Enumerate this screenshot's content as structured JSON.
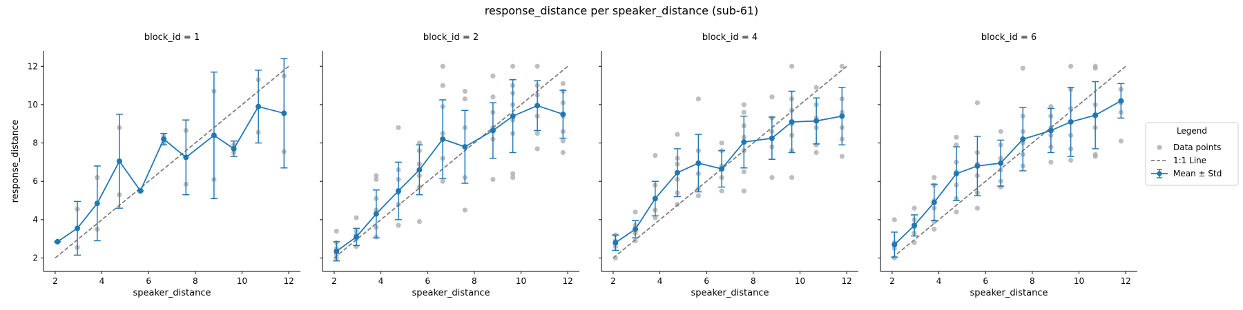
{
  "figure": {
    "title": "response_distance per speaker_distance (sub-61)"
  },
  "legend": {
    "title": "Legend",
    "placement": "right-center",
    "items": [
      {
        "label": "Data points",
        "kind": "scatter",
        "color": "#9e9e9e"
      },
      {
        "label": "1:1 Line",
        "kind": "dashed-line",
        "color": "#7f7f7f"
      },
      {
        "label": "Mean ± Std",
        "kind": "errorbar-line",
        "color": "#1f77b4"
      }
    ]
  },
  "chart_data": [
    {
      "type": "line",
      "title": "block_id = 1",
      "xlabel": "speaker_distance",
      "ylabel": "response_distance",
      "xlim": [
        1.5,
        12.5
      ],
      "ylim": [
        1.3,
        12.8
      ],
      "xticks": [
        2,
        4,
        6,
        8,
        10,
        12
      ],
      "yticks": [
        2,
        4,
        6,
        8,
        10,
        12
      ],
      "grid": false,
      "identity_line": {
        "x": [
          2,
          12
        ],
        "y": [
          2,
          12
        ]
      },
      "series": [
        {
          "x": [
            2.1,
            2.95,
            3.8,
            4.75,
            5.65,
            6.65,
            7.6,
            8.8,
            9.65,
            10.7,
            11.8
          ],
          "mean": [
            2.85,
            3.55,
            4.85,
            7.05,
            5.5,
            8.2,
            7.25,
            8.4,
            7.7,
            9.9,
            9.55
          ],
          "std": [
            0.0,
            1.4,
            1.95,
            2.45,
            0.0,
            0.3,
            1.95,
            3.3,
            0.4,
            1.9,
            2.85
          ]
        }
      ],
      "points": [
        [
          2.1,
          2.85
        ],
        [
          2.95,
          4.55
        ],
        [
          2.95,
          2.55
        ],
        [
          3.8,
          6.2
        ],
        [
          3.8,
          3.5
        ],
        [
          4.75,
          8.8
        ],
        [
          4.75,
          5.3
        ],
        [
          5.65,
          5.55
        ],
        [
          6.65,
          8.0
        ],
        [
          6.65,
          8.35
        ],
        [
          7.6,
          8.65
        ],
        [
          7.6,
          5.85
        ],
        [
          8.8,
          10.7
        ],
        [
          8.8,
          6.1
        ],
        [
          9.65,
          7.5
        ],
        [
          9.65,
          7.9
        ],
        [
          10.7,
          11.3
        ],
        [
          10.7,
          8.55
        ],
        [
          11.8,
          11.5
        ],
        [
          11.8,
          7.55
        ]
      ]
    },
    {
      "type": "line",
      "title": "block_id = 2",
      "xlabel": "speaker_distance",
      "ylabel": "",
      "xlim": [
        1.5,
        12.5
      ],
      "ylim": [
        1.3,
        12.8
      ],
      "xticks": [
        2,
        4,
        6,
        8,
        10,
        12
      ],
      "yticks": [
        2,
        4,
        6,
        8,
        10,
        12
      ],
      "grid": false,
      "identity_line": {
        "x": [
          2,
          12
        ],
        "y": [
          2,
          12
        ]
      },
      "series": [
        {
          "x": [
            2.1,
            2.95,
            3.8,
            4.75,
            5.65,
            6.65,
            7.6,
            8.8,
            9.65,
            10.7,
            11.8
          ],
          "mean": [
            2.35,
            3.1,
            4.3,
            5.5,
            6.6,
            8.2,
            7.8,
            8.65,
            9.4,
            9.95,
            9.5
          ],
          "std": [
            0.5,
            0.45,
            1.25,
            1.5,
            1.3,
            2.05,
            1.9,
            1.45,
            1.9,
            1.3,
            1.25
          ]
        }
      ],
      "points": [
        [
          2.1,
          3.4
        ],
        [
          2.1,
          2.8
        ],
        [
          2.1,
          2.5
        ],
        [
          2.1,
          2.0
        ],
        [
          2.1,
          2.2
        ],
        [
          2.95,
          4.1
        ],
        [
          2.95,
          3.4
        ],
        [
          2.95,
          3.0
        ],
        [
          2.95,
          2.6
        ],
        [
          2.95,
          3.2
        ],
        [
          3.8,
          6.3
        ],
        [
          3.8,
          6.1
        ],
        [
          3.8,
          5.1
        ],
        [
          3.8,
          4.5
        ],
        [
          3.8,
          3.6
        ],
        [
          3.8,
          3.1
        ],
        [
          4.75,
          8.8
        ],
        [
          4.75,
          6.6
        ],
        [
          4.75,
          6.1
        ],
        [
          4.75,
          5.4
        ],
        [
          4.75,
          4.8
        ],
        [
          4.75,
          3.7
        ],
        [
          5.65,
          8.0
        ],
        [
          5.65,
          7.6
        ],
        [
          5.65,
          6.9
        ],
        [
          5.65,
          6.3
        ],
        [
          5.65,
          5.7
        ],
        [
          5.65,
          3.9
        ],
        [
          6.65,
          12.0
        ],
        [
          6.65,
          11.0
        ],
        [
          6.65,
          9.9
        ],
        [
          6.65,
          8.5
        ],
        [
          6.65,
          7.2
        ],
        [
          6.65,
          6.0
        ],
        [
          7.6,
          10.7
        ],
        [
          7.6,
          10.3
        ],
        [
          7.6,
          8.8
        ],
        [
          7.6,
          7.8
        ],
        [
          7.6,
          6.2
        ],
        [
          7.6,
          4.5
        ],
        [
          8.8,
          11.5
        ],
        [
          8.8,
          10.4
        ],
        [
          8.8,
          9.6
        ],
        [
          8.8,
          8.8
        ],
        [
          8.8,
          8.2
        ],
        [
          8.8,
          6.1
        ],
        [
          9.65,
          12.0
        ],
        [
          9.65,
          11.0
        ],
        [
          9.65,
          10.6
        ],
        [
          9.65,
          10.0
        ],
        [
          9.65,
          9.2
        ],
        [
          9.65,
          8.5
        ],
        [
          9.65,
          6.4
        ],
        [
          9.65,
          6.2
        ],
        [
          10.7,
          12.0
        ],
        [
          10.7,
          11.0
        ],
        [
          10.7,
          10.5
        ],
        [
          10.7,
          9.4
        ],
        [
          10.7,
          8.5
        ],
        [
          10.7,
          7.7
        ],
        [
          11.8,
          11.1
        ],
        [
          11.8,
          10.7
        ],
        [
          11.8,
          10.1
        ],
        [
          11.8,
          9.4
        ],
        [
          11.8,
          8.6
        ],
        [
          11.8,
          8.1
        ],
        [
          11.8,
          7.5
        ]
      ]
    },
    {
      "type": "line",
      "title": "block_id = 4",
      "xlabel": "speaker_distance",
      "ylabel": "",
      "xlim": [
        1.5,
        12.5
      ],
      "ylim": [
        1.3,
        12.8
      ],
      "xticks": [
        2,
        4,
        6,
        8,
        10,
        12
      ],
      "yticks": [
        2,
        4,
        6,
        8,
        10,
        12
      ],
      "grid": false,
      "identity_line": {
        "x": [
          2,
          12
        ],
        "y": [
          2,
          12
        ]
      },
      "series": [
        {
          "x": [
            2.1,
            2.95,
            3.8,
            4.75,
            5.65,
            6.65,
            7.6,
            8.8,
            9.65,
            10.7,
            11.8
          ],
          "mean": [
            2.8,
            3.5,
            5.1,
            6.45,
            6.95,
            6.65,
            8.05,
            8.25,
            9.1,
            9.15,
            9.4
          ],
          "std": [
            0.4,
            0.45,
            0.9,
            1.25,
            1.5,
            0.95,
            1.35,
            1.1,
            1.6,
            1.2,
            1.5
          ]
        }
      ],
      "points": [
        [
          2.1,
          3.2
        ],
        [
          2.1,
          2.9
        ],
        [
          2.1,
          2.6
        ],
        [
          2.1,
          2.0
        ],
        [
          2.95,
          4.4
        ],
        [
          2.95,
          3.7
        ],
        [
          2.95,
          3.3
        ],
        [
          2.95,
          2.9
        ],
        [
          3.8,
          7.35
        ],
        [
          3.8,
          5.8
        ],
        [
          3.8,
          5.1
        ],
        [
          3.8,
          4.5
        ],
        [
          3.8,
          4.1
        ],
        [
          4.75,
          8.45
        ],
        [
          4.75,
          7.2
        ],
        [
          4.75,
          6.9
        ],
        [
          4.75,
          6.1
        ],
        [
          4.75,
          5.4
        ],
        [
          4.75,
          4.8
        ],
        [
          5.65,
          10.3
        ],
        [
          5.65,
          7.6
        ],
        [
          5.65,
          6.9
        ],
        [
          5.65,
          6.4
        ],
        [
          5.65,
          5.6
        ],
        [
          5.65,
          5.25
        ],
        [
          6.65,
          8.0
        ],
        [
          6.65,
          7.6
        ],
        [
          6.65,
          6.8
        ],
        [
          6.65,
          6.2
        ],
        [
          6.65,
          5.5
        ],
        [
          7.6,
          10.0
        ],
        [
          7.6,
          9.6
        ],
        [
          7.6,
          8.9
        ],
        [
          7.6,
          8.3
        ],
        [
          7.6,
          7.6
        ],
        [
          7.6,
          6.5
        ],
        [
          7.6,
          5.5
        ],
        [
          8.8,
          10.4
        ],
        [
          8.8,
          9.3
        ],
        [
          8.8,
          8.6
        ],
        [
          8.8,
          8.2
        ],
        [
          8.8,
          7.8
        ],
        [
          8.8,
          6.2
        ],
        [
          9.65,
          12.0
        ],
        [
          9.65,
          10.3
        ],
        [
          9.65,
          9.7
        ],
        [
          9.65,
          9.0
        ],
        [
          9.65,
          8.4
        ],
        [
          9.65,
          7.6
        ],
        [
          9.65,
          6.2
        ],
        [
          10.7,
          10.9
        ],
        [
          10.7,
          10.0
        ],
        [
          10.7,
          9.3
        ],
        [
          10.7,
          8.8
        ],
        [
          10.7,
          7.9
        ],
        [
          10.7,
          7.5
        ],
        [
          11.8,
          12.0
        ],
        [
          11.8,
          10.3
        ],
        [
          11.8,
          9.6
        ],
        [
          11.8,
          8.8
        ],
        [
          11.8,
          8.2
        ],
        [
          11.8,
          7.3
        ]
      ]
    },
    {
      "type": "line",
      "title": "block_id = 6",
      "xlabel": "speaker_distance",
      "ylabel": "",
      "xlim": [
        1.5,
        12.5
      ],
      "ylim": [
        1.3,
        12.8
      ],
      "xticks": [
        2,
        4,
        6,
        8,
        10,
        12
      ],
      "yticks": [
        2,
        4,
        6,
        8,
        10,
        12
      ],
      "grid": false,
      "identity_line": {
        "x": [
          2,
          12
        ],
        "y": [
          2,
          12
        ]
      },
      "series": [
        {
          "x": [
            2.1,
            2.95,
            3.8,
            4.75,
            5.65,
            6.65,
            7.6,
            8.8,
            9.65,
            10.7,
            11.8
          ],
          "mean": [
            2.7,
            3.7,
            4.9,
            6.4,
            6.8,
            6.95,
            8.2,
            8.65,
            9.1,
            9.45,
            10.2
          ],
          "std": [
            0.65,
            0.55,
            0.95,
            1.4,
            1.55,
            1.2,
            1.65,
            1.15,
            1.8,
            1.75,
            0.9
          ]
        }
      ],
      "points": [
        [
          2.1,
          4.0
        ],
        [
          2.1,
          2.8
        ],
        [
          2.1,
          2.5
        ],
        [
          2.1,
          2.0
        ],
        [
          2.95,
          4.6
        ],
        [
          2.95,
          4.0
        ],
        [
          2.95,
          3.6
        ],
        [
          2.95,
          3.3
        ],
        [
          2.95,
          2.8
        ],
        [
          3.8,
          6.2
        ],
        [
          3.8,
          5.8
        ],
        [
          3.8,
          5.0
        ],
        [
          3.8,
          4.6
        ],
        [
          3.8,
          3.9
        ],
        [
          3.8,
          3.5
        ],
        [
          4.75,
          8.3
        ],
        [
          4.75,
          7.9
        ],
        [
          4.75,
          7.0
        ],
        [
          4.75,
          6.5
        ],
        [
          4.75,
          5.8
        ],
        [
          4.75,
          5.1
        ],
        [
          4.75,
          4.4
        ],
        [
          5.65,
          10.1
        ],
        [
          5.65,
          7.5
        ],
        [
          5.65,
          6.9
        ],
        [
          5.65,
          6.3
        ],
        [
          5.65,
          5.4
        ],
        [
          5.65,
          4.6
        ],
        [
          6.65,
          8.6
        ],
        [
          6.65,
          7.9
        ],
        [
          6.65,
          7.2
        ],
        [
          6.65,
          6.6
        ],
        [
          6.65,
          6.0
        ],
        [
          6.65,
          5.7
        ],
        [
          7.6,
          11.9
        ],
        [
          7.6,
          9.4
        ],
        [
          7.6,
          8.6
        ],
        [
          7.6,
          8.0
        ],
        [
          7.6,
          7.4
        ],
        [
          7.6,
          6.8
        ],
        [
          8.8,
          9.9
        ],
        [
          8.8,
          9.4
        ],
        [
          8.8,
          8.8
        ],
        [
          8.8,
          8.4
        ],
        [
          8.8,
          7.8
        ],
        [
          8.8,
          7.0
        ],
        [
          9.65,
          12.0
        ],
        [
          9.65,
          10.8
        ],
        [
          9.65,
          9.8
        ],
        [
          9.65,
          9.1
        ],
        [
          9.65,
          8.4
        ],
        [
          9.65,
          7.7
        ],
        [
          9.65,
          7.1
        ],
        [
          10.7,
          12.0
        ],
        [
          10.7,
          11.9
        ],
        [
          10.7,
          10.0
        ],
        [
          10.7,
          9.4
        ],
        [
          10.7,
          8.8
        ],
        [
          10.7,
          7.4
        ],
        [
          10.7,
          7.3
        ],
        [
          11.8,
          10.8
        ],
        [
          11.8,
          10.1
        ],
        [
          11.8,
          9.6
        ],
        [
          11.8,
          8.1
        ]
      ]
    }
  ]
}
